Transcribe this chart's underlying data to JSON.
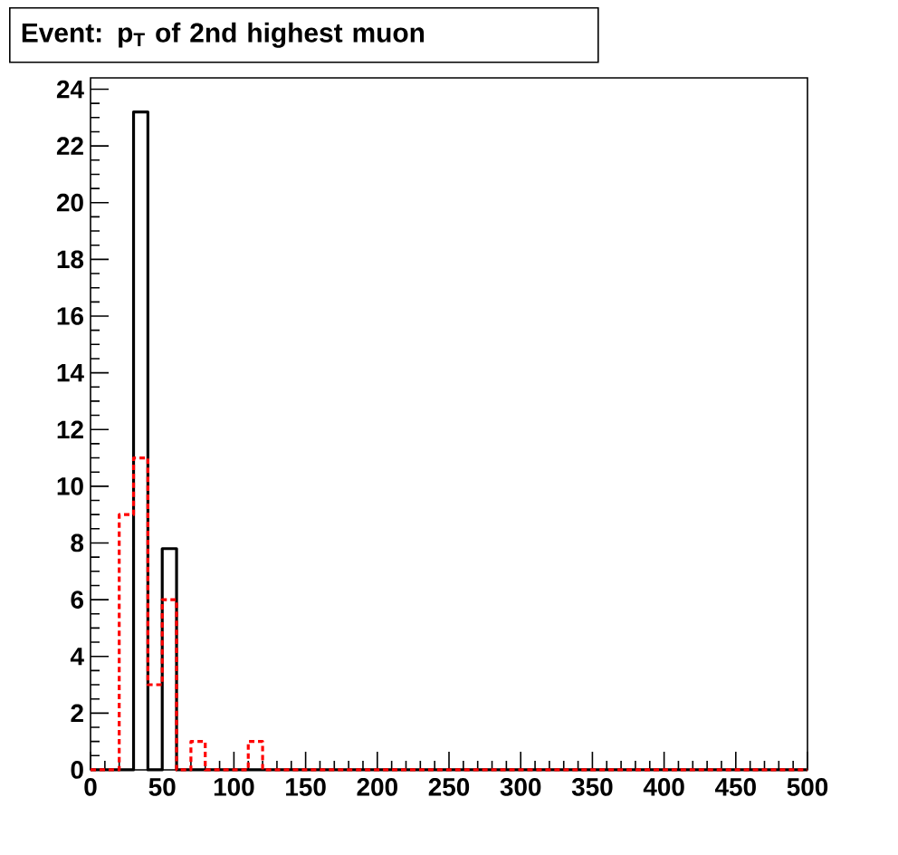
{
  "chart_data": {
    "type": "histogram",
    "title": "Event: p$_{T}$ of 2nd highest muon",
    "bins": [
      0,
      10,
      20,
      30,
      40,
      50,
      60,
      70,
      80,
      90,
      100,
      110,
      120,
      130,
      140,
      150,
      160,
      170,
      180,
      190,
      200,
      210,
      220,
      230,
      240,
      250,
      260,
      270,
      280,
      290,
      300,
      310,
      320,
      330,
      340,
      350,
      360,
      370,
      380,
      390,
      400,
      410,
      420,
      430,
      440,
      450,
      460,
      470,
      480,
      490,
      500
    ],
    "series": [
      {
        "color": "#000000",
        "line_style": "solid",
        "values": [
          0,
          0,
          0,
          23.2,
          0,
          7.8,
          0,
          0,
          0,
          0,
          0,
          0,
          0,
          0,
          0,
          0,
          0,
          0,
          0,
          0,
          0,
          0,
          0,
          0,
          0,
          0,
          0,
          0,
          0,
          0,
          0,
          0,
          0,
          0,
          0,
          0,
          0,
          0,
          0,
          0,
          0,
          0,
          0,
          0,
          0,
          0,
          0,
          0,
          0,
          0
        ]
      },
      {
        "color": "#ff0000",
        "line_style": "dashed",
        "values": [
          0,
          0,
          9,
          11,
          3,
          6,
          0,
          1,
          0,
          0,
          0,
          1,
          0,
          0,
          0,
          0,
          0,
          0,
          0,
          0,
          0,
          0,
          0,
          0,
          0,
          0,
          0,
          0,
          0,
          0,
          0,
          0,
          0,
          0,
          0,
          0,
          0,
          0,
          0,
          0,
          0,
          0,
          0,
          0,
          0,
          0,
          0,
          0,
          0,
          0
        ]
      }
    ],
    "xlim": [
      0,
      500
    ],
    "ylim": [
      0,
      24.4
    ],
    "xticks": [
      0,
      50,
      100,
      150,
      200,
      250,
      300,
      350,
      400,
      450,
      500
    ],
    "yticks": [
      0,
      2,
      4,
      6,
      8,
      10,
      12,
      14,
      16,
      18,
      20,
      22,
      24
    ]
  }
}
